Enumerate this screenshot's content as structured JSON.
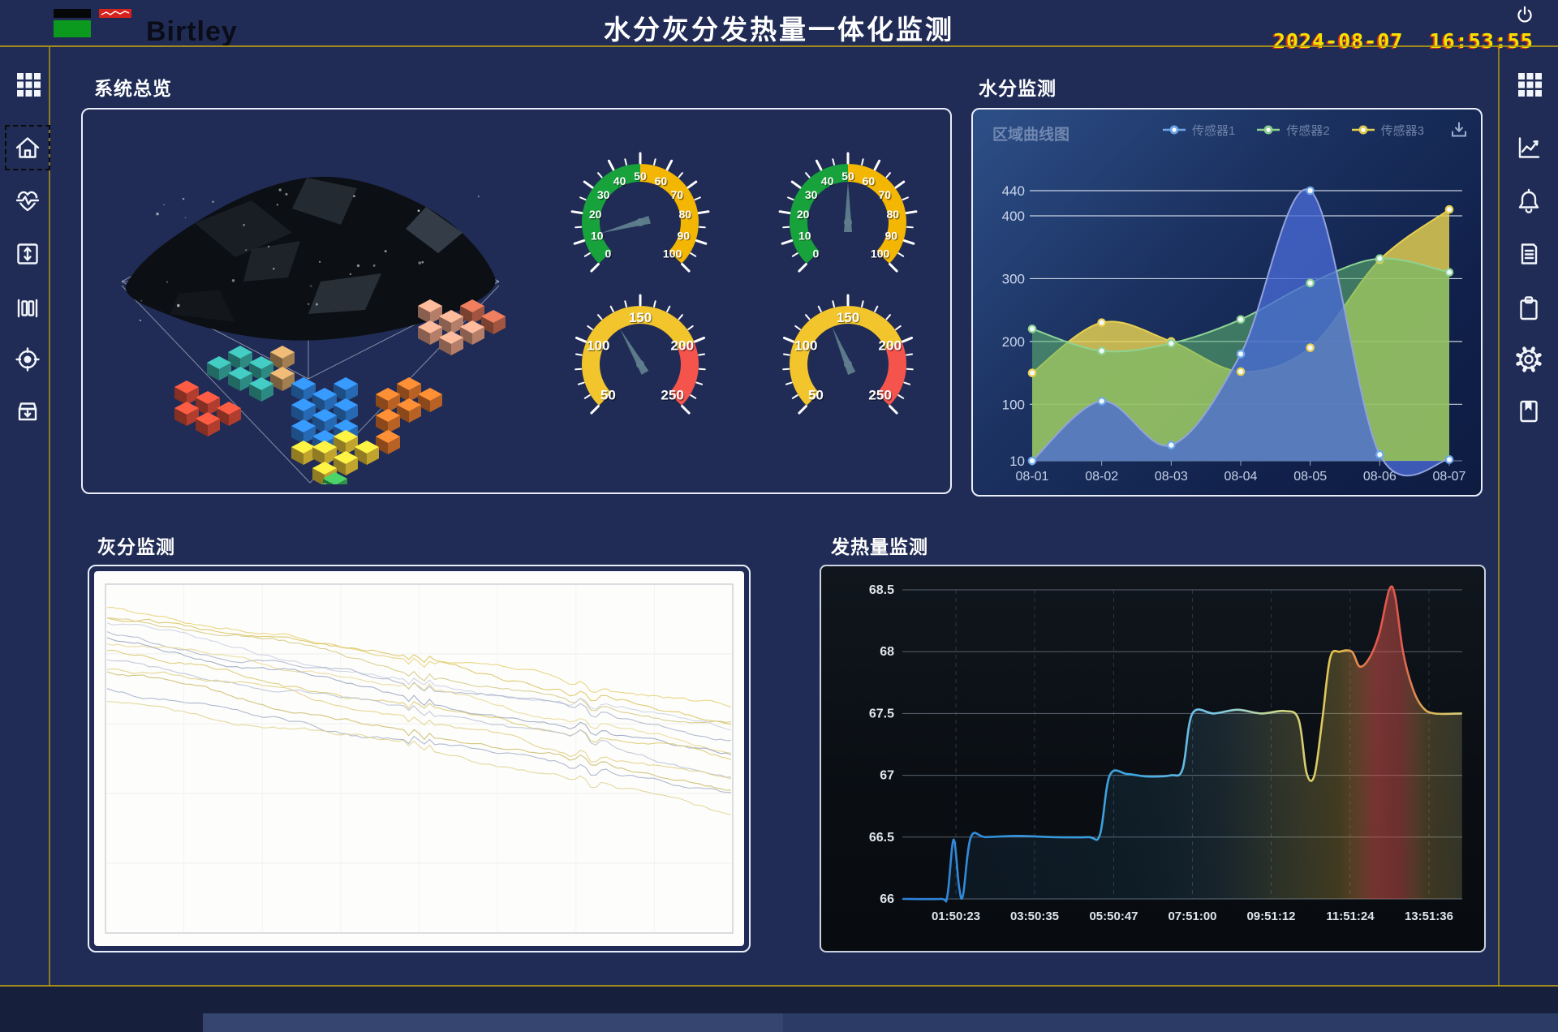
{
  "header": {
    "brand": "Birtley",
    "title": "水分灰分发热量一体化监测",
    "date": "2024-08-07",
    "time": "16:53:55"
  },
  "panels": {
    "overview": {
      "title": "系统总览"
    },
    "moisture": {
      "title": "水分监测",
      "chart_label": "区域曲线图"
    },
    "ash": {
      "title": "灰分监测"
    },
    "calorific": {
      "title": "发热量监测"
    }
  },
  "sidebar_left": {
    "items": [
      {
        "name": "apps",
        "icon": "grid-icon",
        "selected": false
      },
      {
        "name": "home",
        "icon": "home-icon",
        "selected": true
      },
      {
        "name": "health",
        "icon": "heartbeat-icon",
        "selected": false
      },
      {
        "name": "expand",
        "icon": "expand-vertical-icon",
        "selected": false
      },
      {
        "name": "columns",
        "icon": "columns-icon",
        "selected": false
      },
      {
        "name": "target",
        "icon": "target-icon",
        "selected": false
      },
      {
        "name": "archive",
        "icon": "archive-down-icon",
        "selected": false
      }
    ]
  },
  "sidebar_right": {
    "items": [
      {
        "name": "apps",
        "icon": "grid-icon",
        "selected": false
      },
      {
        "name": "trend",
        "icon": "line-chart-icon",
        "selected": false
      },
      {
        "name": "alerts",
        "icon": "bell-icon",
        "selected": false
      },
      {
        "name": "logs",
        "icon": "document-icon",
        "selected": false
      },
      {
        "name": "tasks",
        "icon": "clipboard-icon",
        "selected": false
      },
      {
        "name": "settings",
        "icon": "gear-icon",
        "selected": false
      },
      {
        "name": "save",
        "icon": "bookmark-icon",
        "selected": false
      }
    ]
  },
  "colors": {
    "background": "#202c56",
    "accent_line": "#b89c10",
    "clock": "#f4e300",
    "clock_shadow": "#d83018",
    "panel_border": "#e9eef8"
  },
  "overview_graphic": {
    "layers": [
      {
        "color": "#dd9a80",
        "cubes": [
          [
            420,
            230
          ],
          [
            446,
            243
          ],
          [
            472,
            256
          ],
          [
            420,
            256
          ],
          [
            446,
            269
          ]
        ]
      },
      {
        "color": "#c4684e",
        "cubes": [
          [
            472,
            230
          ],
          [
            498,
            243
          ]
        ]
      },
      {
        "color": "#37a8a0",
        "cubes": [
          [
            160,
            300
          ],
          [
            186,
            313
          ],
          [
            212,
            326
          ],
          [
            186,
            287
          ],
          [
            212,
            300
          ]
        ]
      },
      {
        "color": "#c59a62",
        "cubes": [
          [
            238,
            313
          ],
          [
            238,
            287
          ]
        ]
      },
      {
        "color": "#d84b38",
        "cubes": [
          [
            120,
            330
          ],
          [
            146,
            343
          ],
          [
            120,
            356
          ],
          [
            146,
            369
          ],
          [
            172,
            356
          ]
        ]
      },
      {
        "color": "#2e7fd8",
        "cubes": [
          [
            264,
            326
          ],
          [
            290,
            339
          ],
          [
            316,
            352
          ],
          [
            264,
            352
          ],
          [
            290,
            365
          ],
          [
            316,
            326
          ],
          [
            264,
            378
          ],
          [
            290,
            391
          ],
          [
            316,
            378
          ]
        ]
      },
      {
        "color": "#e0762c",
        "cubes": [
          [
            368,
            339
          ],
          [
            394,
            352
          ],
          [
            368,
            365
          ],
          [
            394,
            326
          ],
          [
            420,
            339
          ],
          [
            368,
            391
          ]
        ]
      },
      {
        "color": "#eac838",
        "cubes": [
          [
            290,
            404
          ],
          [
            316,
            417
          ],
          [
            290,
            430
          ],
          [
            316,
            391
          ],
          [
            264,
            404
          ],
          [
            342,
            404
          ]
        ]
      },
      {
        "color": "#3dae57",
        "cubes": [
          [
            303,
            443
          ],
          [
            290,
            456
          ]
        ]
      }
    ]
  },
  "chart_data": [
    {
      "id": "moisture",
      "type": "area",
      "title": "区域曲线图",
      "legend_position": "top-right",
      "grid": true,
      "categories": [
        "08-01",
        "08-02",
        "08-03",
        "08-04",
        "08-05",
        "08-06",
        "08-07"
      ],
      "series": [
        {
          "name": "传感器1",
          "color": "#93a2dd",
          "fill": "rgba(73,106,214,0.78)",
          "marker": "#6ea8e8",
          "values": [
            10,
            105,
            35,
            180,
            440,
            20,
            12
          ]
        },
        {
          "name": "传感器2",
          "color": "#8ed392",
          "fill": "rgba(96,186,112,0.55)",
          "marker": "#8ed392",
          "values": [
            220,
            185,
            197,
            235,
            293,
            332,
            310
          ]
        },
        {
          "name": "传感器3",
          "color": "#e8d14f",
          "fill": "rgba(233,211,82,0.82)",
          "marker": "#e8d14f",
          "values": [
            150,
            230,
            200,
            152,
            190,
            330,
            410
          ]
        }
      ],
      "y_ticks": [
        10,
        100,
        200,
        300,
        400,
        440
      ],
      "ylim": [
        10,
        440
      ]
    },
    {
      "id": "calorific",
      "type": "line",
      "x_tick_labels": [
        "01:50:23",
        "03:50:35",
        "05:50:47",
        "07:51:00",
        "09:51:12",
        "11:51:24",
        "13:51:36"
      ],
      "x_tick_hours": [
        1.84,
        3.84,
        5.85,
        7.85,
        9.85,
        11.86,
        13.86
      ],
      "y_ticks": [
        66,
        66.5,
        67,
        67.5,
        68,
        68.5
      ],
      "ylim": [
        66,
        68.5
      ],
      "points": [
        [
          0.48,
          66
        ],
        [
          1.45,
          66
        ],
        [
          1.62,
          66.02
        ],
        [
          1.78,
          66.48
        ],
        [
          1.92,
          66.1
        ],
        [
          2.02,
          66.03
        ],
        [
          2.22,
          66.5
        ],
        [
          2.6,
          66.5
        ],
        [
          3.4,
          66.51
        ],
        [
          4.3,
          66.5
        ],
        [
          5.2,
          66.5
        ],
        [
          5.5,
          66.52
        ],
        [
          5.75,
          67
        ],
        [
          6.2,
          67.01
        ],
        [
          6.7,
          66.99
        ],
        [
          7.3,
          67
        ],
        [
          7.6,
          67.05
        ],
        [
          7.85,
          67.5
        ],
        [
          8.4,
          67.5
        ],
        [
          9.0,
          67.53
        ],
        [
          9.6,
          67.5
        ],
        [
          10.2,
          67.52
        ],
        [
          10.55,
          67.45
        ],
        [
          10.75,
          67.02
        ],
        [
          10.95,
          67.0
        ],
        [
          11.15,
          67.45
        ],
        [
          11.35,
          67.95
        ],
        [
          11.6,
          68.0
        ],
        [
          11.9,
          68.0
        ],
        [
          12.1,
          67.88
        ],
        [
          12.35,
          67.95
        ],
        [
          12.6,
          68.15
        ],
        [
          12.85,
          68.5
        ],
        [
          13.0,
          68.45
        ],
        [
          13.2,
          68.0
        ],
        [
          13.45,
          67.7
        ],
        [
          13.7,
          67.55
        ],
        [
          14.0,
          67.5
        ],
        [
          14.7,
          67.5
        ]
      ],
      "stroke_gradient": [
        [
          "0%",
          "#2d7fd6",
          0.08
        ],
        [
          "42%",
          "#3fa9e0",
          0.1
        ],
        [
          "56%",
          "#7cc8e8",
          0.12
        ],
        [
          "67%",
          "#cdd98a",
          0.18
        ],
        [
          "78%",
          "#e6c14a",
          0.25
        ],
        [
          "84.5%",
          "#e2584e",
          0.5
        ],
        [
          "89%",
          "#e2584e",
          0.45
        ],
        [
          "94%",
          "#ddb554",
          0.25
        ],
        [
          "100%",
          "#d9cf7c",
          0.2
        ]
      ]
    },
    {
      "id": "ash",
      "type": "line-multi",
      "background": "#ffffff",
      "lines": [
        {
          "color": "#e5d06e",
          "y_start": 44,
          "y_end": 170
        },
        {
          "color": "#dcc258",
          "y_start": 52,
          "y_end": 182
        },
        {
          "color": "#d4c87f",
          "y_start": 60,
          "y_end": 192
        },
        {
          "color": "#c9cfe0",
          "y_start": 67,
          "y_end": 200
        },
        {
          "color": "#aab3c9",
          "y_start": 74,
          "y_end": 208
        },
        {
          "color": "#e8d88e",
          "y_start": 82,
          "y_end": 218
        },
        {
          "color": "#99a3bd",
          "y_start": 90,
          "y_end": 228
        },
        {
          "color": "#d9c86a",
          "y_start": 99,
          "y_end": 238
        },
        {
          "color": "#b8c0d4",
          "y_start": 108,
          "y_end": 248
        },
        {
          "color": "#e0cf80",
          "y_start": 118,
          "y_end": 258
        },
        {
          "color": "#cabb66",
          "y_start": 130,
          "y_end": 268
        },
        {
          "color": "#a3adc4",
          "y_start": 143,
          "y_end": 280
        },
        {
          "color": "#dfd28c",
          "y_start": 158,
          "y_end": 292
        }
      ]
    },
    {
      "id": "gauge1",
      "type": "gauge",
      "min": 0,
      "max": 100,
      "value": 11,
      "major": 10,
      "minor": 5,
      "label_size": 14,
      "bands": [
        [
          0,
          50,
          "#17a23b"
        ],
        [
          50,
          100,
          "#f3b602"
        ]
      ]
    },
    {
      "id": "gauge2",
      "type": "gauge",
      "min": 0,
      "max": 100,
      "value": 50,
      "major": 10,
      "minor": 5,
      "label_size": 14,
      "bands": [
        [
          0,
          50,
          "#17a23b"
        ],
        [
          50,
          100,
          "#f3b602"
        ]
      ]
    },
    {
      "id": "gauge3",
      "type": "gauge",
      "min": 50,
      "max": 250,
      "value": 128,
      "major": 50,
      "minor": 10,
      "label_size": 17,
      "bands": [
        [
          50,
          200,
          "#f3c52c"
        ],
        [
          200,
          250,
          "#f4544c"
        ]
      ]
    },
    {
      "id": "gauge4",
      "type": "gauge",
      "min": 50,
      "max": 250,
      "value": 133,
      "major": 50,
      "minor": 10,
      "label_size": 17,
      "bands": [
        [
          50,
          200,
          "#f3c52c"
        ],
        [
          200,
          250,
          "#f4544c"
        ]
      ]
    }
  ]
}
